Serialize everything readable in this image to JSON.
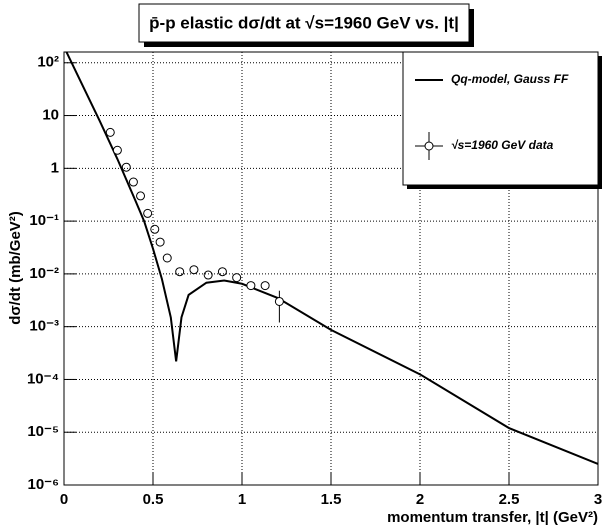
{
  "chart_data": {
    "type": "line",
    "title": "p̄-p elastic dσ/dt at √s=1960 GeV vs. |t|",
    "x_label": "momentum transfer, |t| (GeV²)",
    "y_label": "dσ/dt  (mb/GeV²)",
    "log_y": true,
    "xlim": [
      0,
      3
    ],
    "xticks": [
      0,
      0.5,
      1,
      1.5,
      2,
      2.5,
      3
    ],
    "ylim": [
      1e-06,
      160
    ],
    "yticks": [
      {
        "value": 1e-06,
        "label": "10⁻⁶"
      },
      {
        "value": 1e-05,
        "label": "10⁻⁵"
      },
      {
        "value": 0.0001,
        "label": "10⁻⁴"
      },
      {
        "value": 0.001,
        "label": "10⁻³"
      },
      {
        "value": 0.01,
        "label": "10⁻²"
      },
      {
        "value": 0.1,
        "label": "10⁻¹"
      },
      1,
      10,
      {
        "value": 100,
        "label": "10²"
      }
    ],
    "grid": true,
    "legend": "top-right",
    "series": [
      {
        "name": "Qq-model, Gauss FF",
        "color": "#000000",
        "x": [
          0,
          0.1,
          0.2,
          0.3,
          0.4,
          0.45,
          0.5,
          0.55,
          0.6,
          0.63,
          0.66,
          0.7,
          0.8,
          0.9,
          1.0,
          1.2,
          1.5,
          2.0,
          2.5,
          3.0
        ],
        "values": [
          200,
          40,
          8,
          1.5,
          0.25,
          0.1,
          0.03,
          0.008,
          0.0015,
          0.00022,
          0.0015,
          0.004,
          0.0068,
          0.0075,
          0.0065,
          0.0035,
          0.00087,
          0.000125,
          1.2e-05,
          2.5e-06
        ]
      },
      {
        "name": "√s=1960 GeV  data",
        "color": "#000000",
        "marker": "circle",
        "x": [
          0.26,
          0.3,
          0.35,
          0.39,
          0.43,
          0.47,
          0.51,
          0.54,
          0.58,
          0.65,
          0.73,
          0.81,
          0.89,
          0.97,
          1.05,
          1.13,
          1.21
        ],
        "values": [
          4.8,
          2.2,
          1.05,
          0.55,
          0.3,
          0.14,
          0.07,
          0.04,
          0.02,
          0.011,
          0.012,
          0.0095,
          0.011,
          0.0085,
          0.006,
          0.006,
          0.003
        ],
        "errors": [
          null,
          null,
          null,
          null,
          null,
          null,
          null,
          null,
          null,
          null,
          null,
          null,
          null,
          null,
          null,
          null,
          0.0018
        ]
      }
    ]
  }
}
